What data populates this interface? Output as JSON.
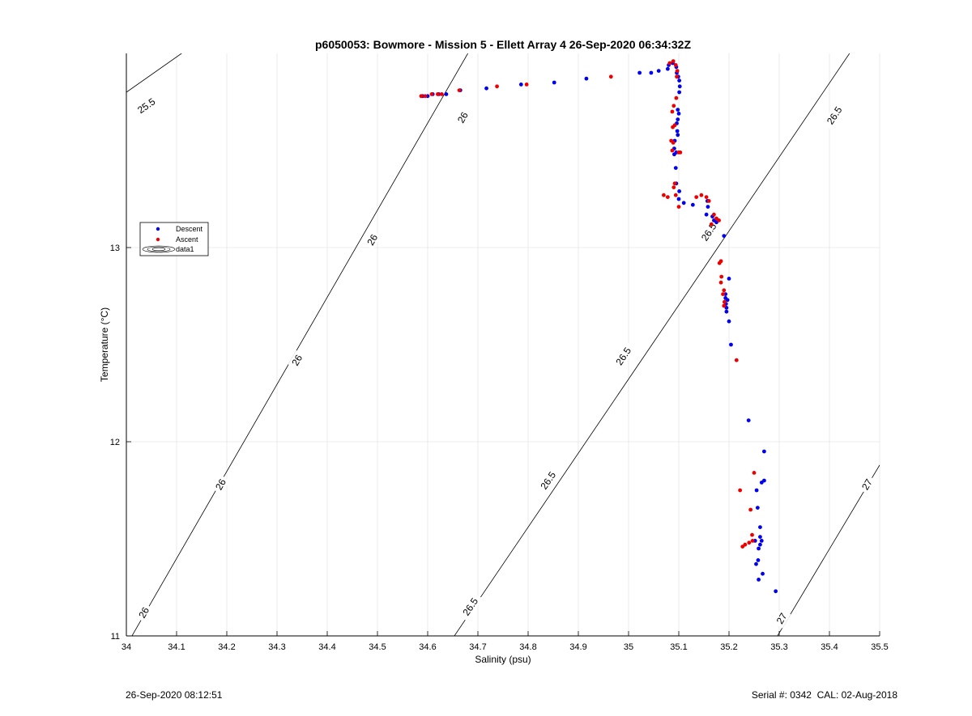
{
  "chart_data": {
    "type": "scatter",
    "title": "p6050053: Bowmore - Mission 5 - Ellett Array 4 26-Sep-2020 06:34:32Z",
    "xlabel": "Salinity (psu)",
    "ylabel": "Temperature (°C)",
    "xlim": [
      34.0,
      35.5
    ],
    "ylim": [
      11.0,
      14.0
    ],
    "xticks": [
      34,
      34.1,
      34.2,
      34.3,
      34.4,
      34.5,
      34.6,
      34.7,
      34.8,
      34.9,
      35,
      35.1,
      35.2,
      35.3,
      35.4,
      35.5
    ],
    "yticks": [
      11,
      12,
      13
    ],
    "grid": true,
    "legend": {
      "placement": "left-center",
      "entries": [
        "Descent",
        "Ascent",
        "data1"
      ]
    },
    "series": [
      {
        "name": "Descent",
        "color": "#0000ee",
        "points": [
          [
            35.293,
            11.23
          ],
          [
            35.259,
            11.29
          ],
          [
            35.267,
            11.32
          ],
          [
            35.258,
            11.39
          ],
          [
            35.254,
            11.37
          ],
          [
            35.259,
            11.45
          ],
          [
            35.262,
            11.47
          ],
          [
            35.265,
            11.49
          ],
          [
            35.252,
            11.49
          ],
          [
            35.262,
            11.51
          ],
          [
            35.262,
            11.56
          ],
          [
            35.257,
            11.66
          ],
          [
            35.255,
            11.75
          ],
          [
            35.265,
            11.79
          ],
          [
            35.27,
            11.8
          ],
          [
            35.27,
            11.95
          ],
          [
            35.239,
            12.11
          ],
          [
            35.204,
            12.5
          ],
          [
            35.2,
            12.62
          ],
          [
            35.195,
            12.67
          ],
          [
            35.195,
            12.69
          ],
          [
            35.194,
            12.71
          ],
          [
            35.197,
            12.73
          ],
          [
            35.193,
            12.74
          ],
          [
            35.193,
            12.76
          ],
          [
            35.2,
            12.84
          ],
          [
            35.19,
            13.06
          ],
          [
            35.175,
            13.13
          ],
          [
            35.17,
            13.14
          ],
          [
            35.167,
            13.16
          ],
          [
            35.155,
            13.17
          ],
          [
            35.158,
            13.21
          ],
          [
            35.157,
            13.24
          ],
          [
            35.128,
            13.22
          ],
          [
            35.11,
            13.23
          ],
          [
            35.1,
            13.25
          ],
          [
            35.101,
            13.29
          ],
          [
            35.095,
            13.33
          ],
          [
            35.094,
            13.41
          ],
          [
            35.091,
            13.48
          ],
          [
            35.095,
            13.49
          ],
          [
            35.091,
            13.51
          ],
          [
            35.092,
            13.55
          ],
          [
            35.098,
            13.58
          ],
          [
            35.097,
            13.6
          ],
          [
            35.096,
            13.64
          ],
          [
            35.098,
            13.66
          ],
          [
            35.1,
            13.69
          ],
          [
            35.098,
            13.71
          ],
          [
            35.101,
            13.8
          ],
          [
            35.102,
            13.83
          ],
          [
            35.101,
            13.86
          ],
          [
            35.099,
            13.88
          ],
          [
            35.096,
            13.9
          ],
          [
            35.095,
            13.93
          ],
          [
            35.088,
            13.95
          ],
          [
            35.08,
            13.94
          ],
          [
            35.078,
            13.92
          ],
          [
            35.06,
            13.91
          ],
          [
            35.045,
            13.9
          ],
          [
            35.022,
            13.9
          ],
          [
            34.916,
            13.87
          ],
          [
            34.852,
            13.85
          ],
          [
            34.786,
            13.84
          ],
          [
            34.717,
            13.82
          ],
          [
            34.665,
            13.81
          ],
          [
            34.637,
            13.79
          ],
          [
            34.622,
            13.79
          ],
          [
            34.61,
            13.79
          ],
          [
            34.6,
            13.78
          ],
          [
            34.59,
            13.78
          ]
        ]
      },
      {
        "name": "Ascent",
        "color": "#ee0000",
        "points": [
          [
            34.587,
            13.78
          ],
          [
            34.595,
            13.78
          ],
          [
            34.608,
            13.79
          ],
          [
            34.62,
            13.79
          ],
          [
            34.628,
            13.79
          ],
          [
            34.663,
            13.81
          ],
          [
            34.738,
            13.83
          ],
          [
            34.797,
            13.84
          ],
          [
            34.965,
            13.88
          ],
          [
            35.082,
            13.95
          ],
          [
            35.089,
            13.96
          ],
          [
            35.094,
            13.94
          ],
          [
            35.097,
            13.91
          ],
          [
            35.096,
            13.88
          ],
          [
            35.095,
            13.77
          ],
          [
            35.09,
            13.73
          ],
          [
            35.087,
            13.7
          ],
          [
            35.092,
            13.63
          ],
          [
            35.088,
            13.62
          ],
          [
            35.085,
            13.55
          ],
          [
            35.089,
            13.54
          ],
          [
            35.087,
            13.5
          ],
          [
            35.1,
            13.49
          ],
          [
            35.103,
            13.49
          ],
          [
            35.092,
            13.33
          ],
          [
            35.09,
            13.31
          ],
          [
            35.094,
            13.27
          ],
          [
            35.07,
            13.27
          ],
          [
            35.078,
            13.26
          ],
          [
            35.1,
            13.21
          ],
          [
            35.135,
            13.26
          ],
          [
            35.145,
            13.27
          ],
          [
            35.155,
            13.26
          ],
          [
            35.16,
            13.24
          ],
          [
            35.17,
            13.17
          ],
          [
            35.175,
            13.15
          ],
          [
            35.18,
            13.14
          ],
          [
            35.165,
            13.12
          ],
          [
            35.184,
            12.93
          ],
          [
            35.181,
            12.92
          ],
          [
            35.185,
            12.85
          ],
          [
            35.184,
            12.82
          ],
          [
            35.19,
            12.78
          ],
          [
            35.188,
            12.76
          ],
          [
            35.191,
            12.72
          ],
          [
            35.19,
            12.7
          ],
          [
            35.215,
            12.42
          ],
          [
            35.222,
            11.75
          ],
          [
            35.25,
            11.84
          ],
          [
            35.243,
            11.65
          ],
          [
            35.227,
            11.46
          ],
          [
            35.232,
            11.47
          ],
          [
            35.24,
            11.48
          ],
          [
            35.247,
            11.49
          ],
          [
            35.246,
            11.52
          ]
        ]
      }
    ],
    "density_isolines": [
      {
        "label": "25.5",
        "points": [
          [
            34.0,
            13.8
          ],
          [
            34.11,
            14.0
          ]
        ],
        "label_positions": [
          [
            34.04,
            13.73
          ]
        ]
      },
      {
        "label": "26",
        "points": [
          [
            34.0,
            10.95
          ],
          [
            34.68,
            14.0
          ]
        ],
        "label_positions": [
          [
            34.035,
            11.12
          ],
          [
            34.188,
            11.78
          ],
          [
            34.34,
            12.42
          ],
          [
            34.49,
            13.04
          ],
          [
            34.67,
            13.67
          ]
        ]
      },
      {
        "label": "26.5",
        "points": [
          [
            34.64,
            10.95
          ],
          [
            35.44,
            14.0
          ]
        ],
        "label_positions": [
          [
            34.685,
            11.15
          ],
          [
            34.84,
            11.8
          ],
          [
            34.99,
            12.44
          ],
          [
            35.16,
            13.08
          ],
          [
            35.41,
            13.68
          ]
        ]
      },
      {
        "label": "27",
        "points": [
          [
            35.285,
            10.95
          ],
          [
            35.5,
            11.88
          ]
        ],
        "label_positions": [
          [
            35.305,
            11.09
          ],
          [
            35.475,
            11.78
          ]
        ]
      }
    ]
  },
  "footer": {
    "timestamp": "26-Sep-2020 08:12:51",
    "serial": "Serial #: 0342  CAL: 02-Aug-2018"
  }
}
